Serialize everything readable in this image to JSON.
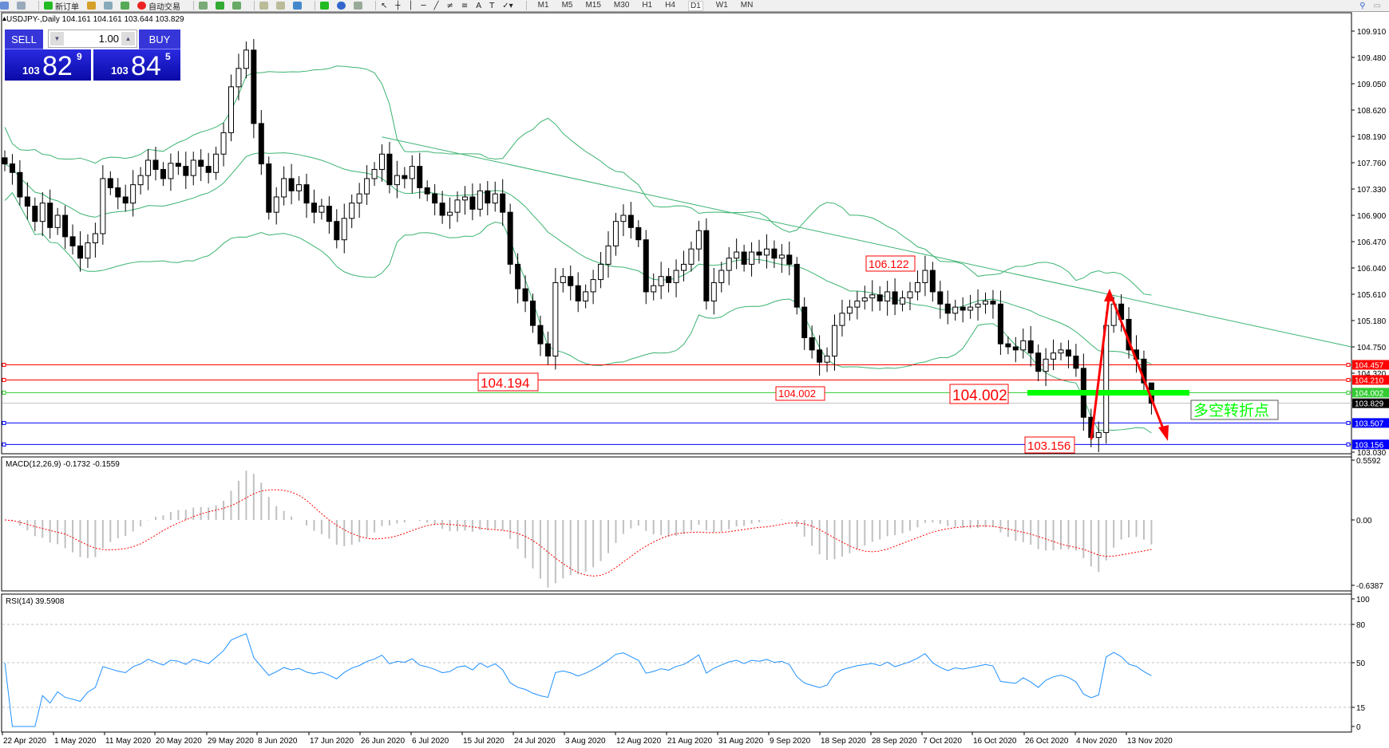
{
  "toolbar": {
    "new_order_label": "新订单",
    "auto_trading_label": "自动交易",
    "timeframes": [
      "M1",
      "M5",
      "M15",
      "M30",
      "H1",
      "H4",
      "D1",
      "W1",
      "MN"
    ],
    "active_timeframe": "D1"
  },
  "chart_header": {
    "title": "USDJPY-,Daily  104.161 104.161 103.644 103.829"
  },
  "trade_panel": {
    "sell_label": "SELL",
    "buy_label": "BUY",
    "volume": "1.00",
    "sell_price_prefix": "103",
    "sell_price_big": "82",
    "sell_price_sup": "9",
    "buy_price_prefix": "103",
    "buy_price_big": "84",
    "buy_price_sup": "5",
    "color": "#2a2ae0"
  },
  "chart_data": {
    "type": "candlestick",
    "symbol": "USDJPY-",
    "period": "Daily",
    "last_bar": {
      "open": 104.161,
      "high": 104.161,
      "low": 103.644,
      "close": 103.829
    },
    "closes": [
      107.74,
      107.6,
      107.2,
      107.05,
      106.8,
      107.1,
      106.7,
      106.9,
      106.55,
      106.4,
      106.2,
      106.45,
      106.6,
      107.5,
      107.35,
      107.2,
      107.1,
      107.4,
      107.55,
      107.8,
      107.65,
      107.5,
      107.75,
      107.7,
      107.55,
      107.8,
      107.7,
      107.6,
      107.9,
      108.25,
      109.0,
      109.3,
      109.6,
      108.4,
      107.74,
      106.95,
      107.2,
      107.5,
      107.3,
      107.4,
      107.1,
      106.95,
      107.05,
      106.8,
      106.5,
      106.85,
      107.1,
      107.25,
      107.5,
      107.65,
      107.9,
      107.4,
      107.55,
      107.5,
      107.7,
      107.35,
      107.25,
      107.1,
      106.9,
      106.95,
      107.15,
      107.2,
      107.0,
      107.3,
      107.1,
      107.25,
      106.95,
      106.1,
      105.7,
      105.5,
      105.1,
      104.8,
      104.6,
      105.8,
      105.9,
      105.75,
      105.5,
      105.65,
      105.85,
      106.1,
      106.4,
      106.8,
      106.9,
      106.7,
      106.5,
      105.65,
      105.75,
      105.9,
      105.8,
      106.0,
      106.1,
      106.35,
      106.65,
      105.5,
      105.8,
      106.0,
      106.2,
      106.3,
      106.1,
      106.3,
      106.25,
      106.35,
      106.2,
      106.25,
      106.1,
      105.4,
      104.9,
      104.7,
      104.5,
      104.6,
      105.1,
      105.3,
      105.4,
      105.5,
      105.55,
      105.6,
      105.5,
      105.65,
      105.45,
      105.55,
      105.65,
      105.8,
      106.0,
      105.65,
      105.45,
      105.3,
      105.4,
      105.35,
      105.4,
      105.45,
      105.5,
      105.45,
      104.8,
      104.75,
      104.7,
      104.85,
      104.65,
      104.35,
      104.55,
      104.65,
      104.7,
      104.6,
      104.4,
      103.6,
      103.27,
      103.35,
      105.1,
      105.45,
      105.2,
      104.7,
      104.55,
      104.161,
      103.829
    ],
    "price_axis": {
      "range": [
        103.03,
        109.91
      ],
      "ticks": [
        "109.910",
        "109.480",
        "109.050",
        "108.620",
        "108.190",
        "107.760",
        "107.330",
        "106.900",
        "106.470",
        "106.040",
        "105.610",
        "105.180",
        "104.750",
        "104.320",
        "103.030"
      ]
    },
    "date_axis": [
      "22 Apr 2020",
      "1 May 2020",
      "11 May 2020",
      "20 May 2020",
      "29 May 2020",
      "8 Jun 2020",
      "17 Jun 2020",
      "26 Jun 2020",
      "6 Jul 2020",
      "15 Jul 2020",
      "24 Jul 2020",
      "3 Aug 2020",
      "12 Aug 2020",
      "21 Aug 2020",
      "31 Aug 2020",
      "9 Sep 2020",
      "18 Sep 2020",
      "28 Sep 2020",
      "7 Oct 2020",
      "16 Oct 2020",
      "26 Oct 2020",
      "4 Nov 2020",
      "13 Nov 2020"
    ],
    "horizontal_lines": [
      {
        "price": "104.457",
        "color": "#ff0000",
        "label_color": "#ffffff"
      },
      {
        "price": "104.210",
        "color": "#ff0000",
        "label_color": "#ffffff"
      },
      {
        "price": "104.002",
        "color": "#33cc33",
        "label_color": "#ffffff"
      },
      {
        "price": "103.829",
        "color": "#c0c0c0",
        "label_bg": "#000000",
        "label_color": "#ffffff"
      },
      {
        "price": "103.507",
        "color": "#0000ff",
        "label_color": "#ffffff"
      },
      {
        "price": "103.156",
        "color": "#0000ff",
        "label_color": "#ffffff"
      }
    ],
    "trendline": {
      "start_bar": 50,
      "start_price": 108.18,
      "end_price": 104.75,
      "color": "#3cb371"
    },
    "bollinger_bands": {
      "period": 20,
      "deviation": 2,
      "color": "#3cb371"
    },
    "annotations": {
      "price_labels": [
        "104.194",
        "104.002",
        "104.002",
        "106.122",
        "103.156"
      ],
      "text_note": "多空转折点",
      "note_color": "#00ff00",
      "arrow_color": "#ff0000",
      "highlight_bar_color": "#00ff00"
    },
    "macd": {
      "label": "MACD(12,26,9) -0.1732 -0.1559",
      "axis_ticks": [
        "0.5592",
        "0.00",
        "-0.6387"
      ],
      "range": [
        -0.6387,
        0.5592
      ],
      "histogram_color": "#c0c0c0",
      "signal_color": "#ff0000"
    },
    "rsi": {
      "label": "RSI(14) 39.5908",
      "axis_ticks": [
        "100",
        "80",
        "50",
        "15",
        "0"
      ],
      "levels": [
        80,
        50,
        15
      ],
      "range": [
        0,
        100
      ],
      "color": "#1e90ff"
    }
  }
}
